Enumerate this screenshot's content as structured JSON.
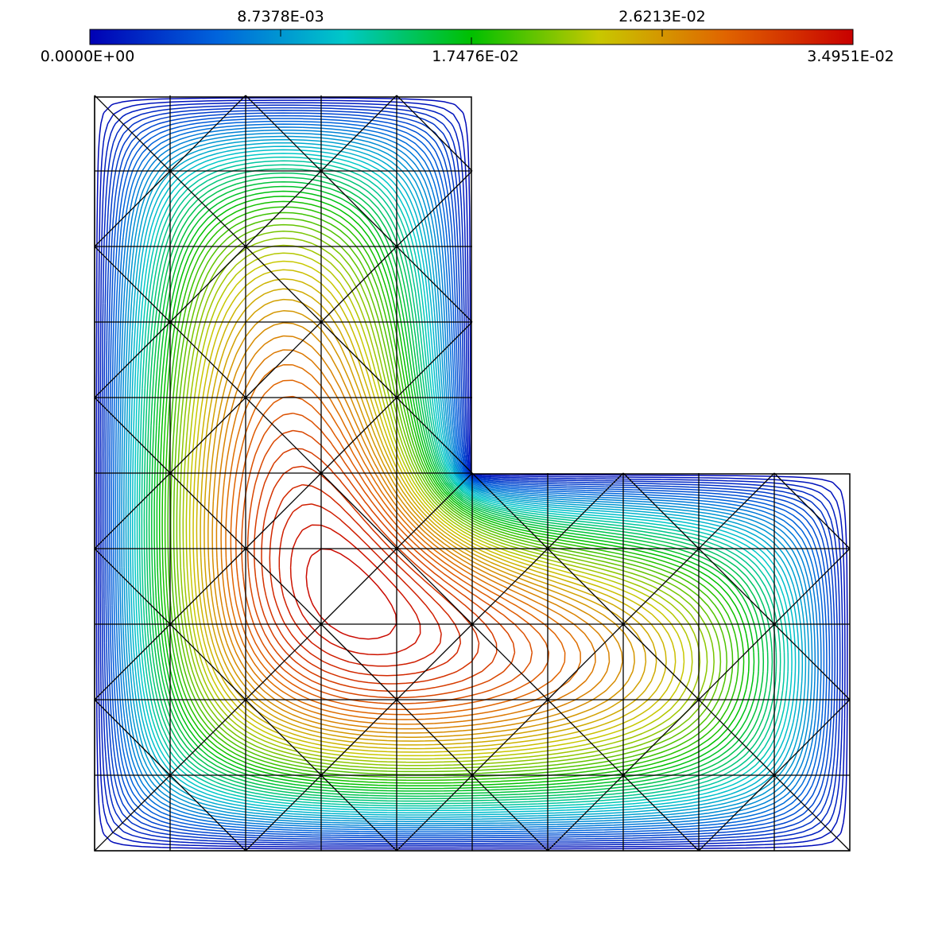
{
  "colorbar": {
    "ticks_bottom": [
      "0.0000E+00",
      "1.7476E-02",
      "3.4951E-02"
    ],
    "ticks_top": [
      "8.7378E-03",
      "2.6213E-02"
    ],
    "min": 0.0,
    "max": 0.034951,
    "colors": [
      "#0000b4",
      "#0064dc",
      "#00c8c8",
      "#00c000",
      "#c8c800",
      "#e06400",
      "#c80000"
    ]
  },
  "plot": {
    "type": "contour-on-mesh",
    "domain_shape": "L-shaped",
    "mesh_color": "#000000"
  }
}
